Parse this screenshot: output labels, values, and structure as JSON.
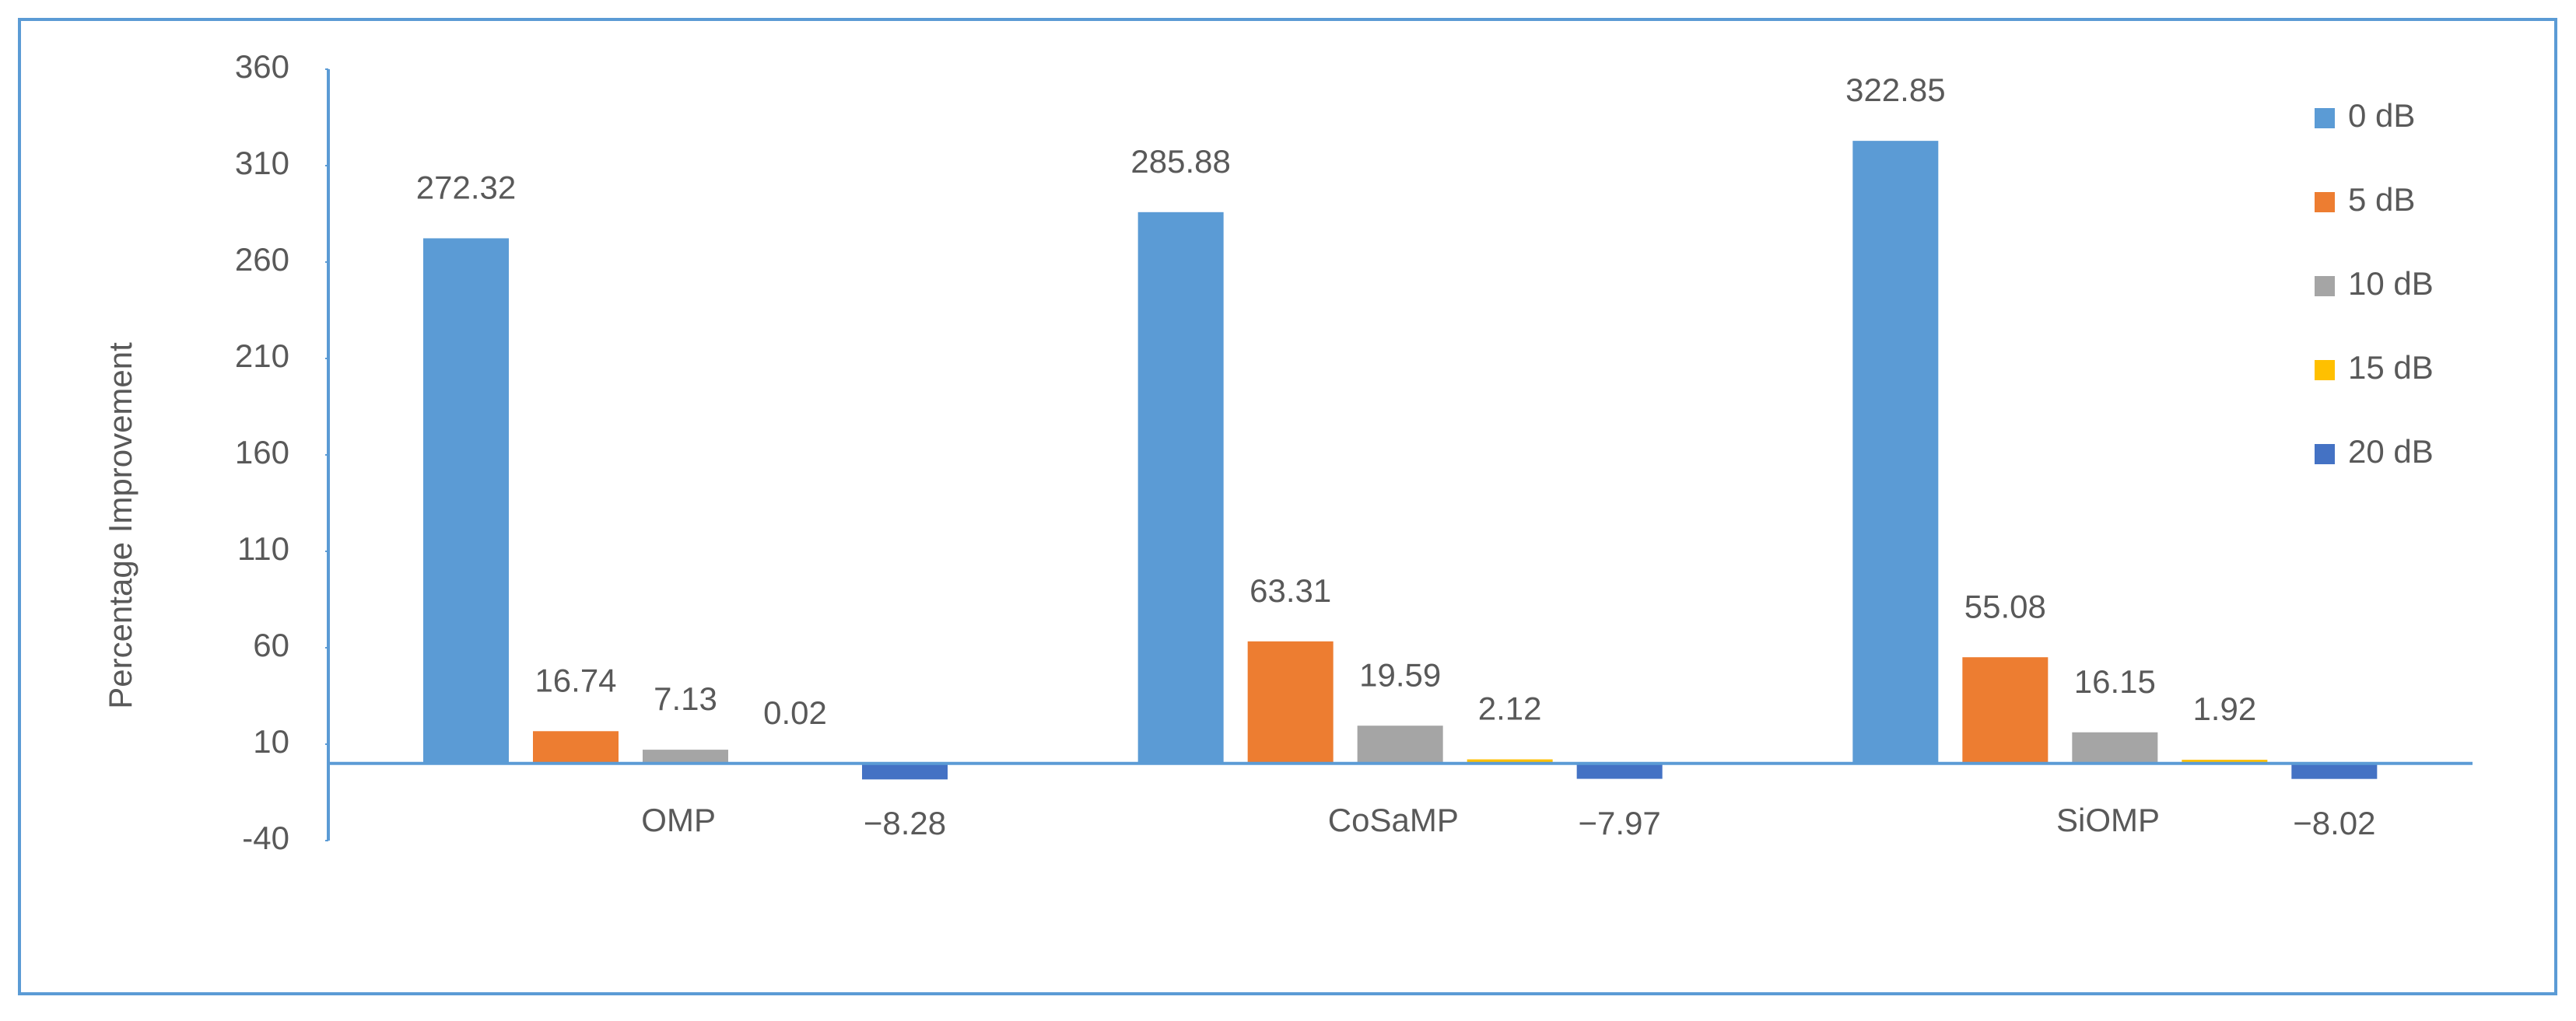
{
  "chart_data": {
    "type": "bar",
    "y_label": "Percentage Improvement",
    "categories": [
      "OMP",
      "CoSaMP",
      "SiOMP"
    ],
    "series": [
      {
        "name": "0 dB",
        "color": "#5b9bd5",
        "values": [
          272.32,
          285.88,
          322.85
        ]
      },
      {
        "name": "5 dB",
        "color": "#ed7d31",
        "values": [
          16.74,
          63.31,
          55.08
        ]
      },
      {
        "name": "10 dB",
        "color": "#a5a5a5",
        "values": [
          7.13,
          19.59,
          16.15
        ]
      },
      {
        "name": "15 dB",
        "color": "#ffc000",
        "values": [
          0.02,
          2.12,
          1.92
        ]
      },
      {
        "name": "20 dB",
        "color": "#4472c4",
        "values": [
          -8.28,
          -7.97,
          -8.02
        ],
        "value_labels": [
          "−8.28",
          "−7.97",
          "−8.02"
        ]
      }
    ],
    "ylim": [
      -40,
      360
    ],
    "yticks": [
      -40,
      10,
      60,
      110,
      160,
      210,
      260,
      310,
      360
    ],
    "legend": "right",
    "grid": false
  }
}
